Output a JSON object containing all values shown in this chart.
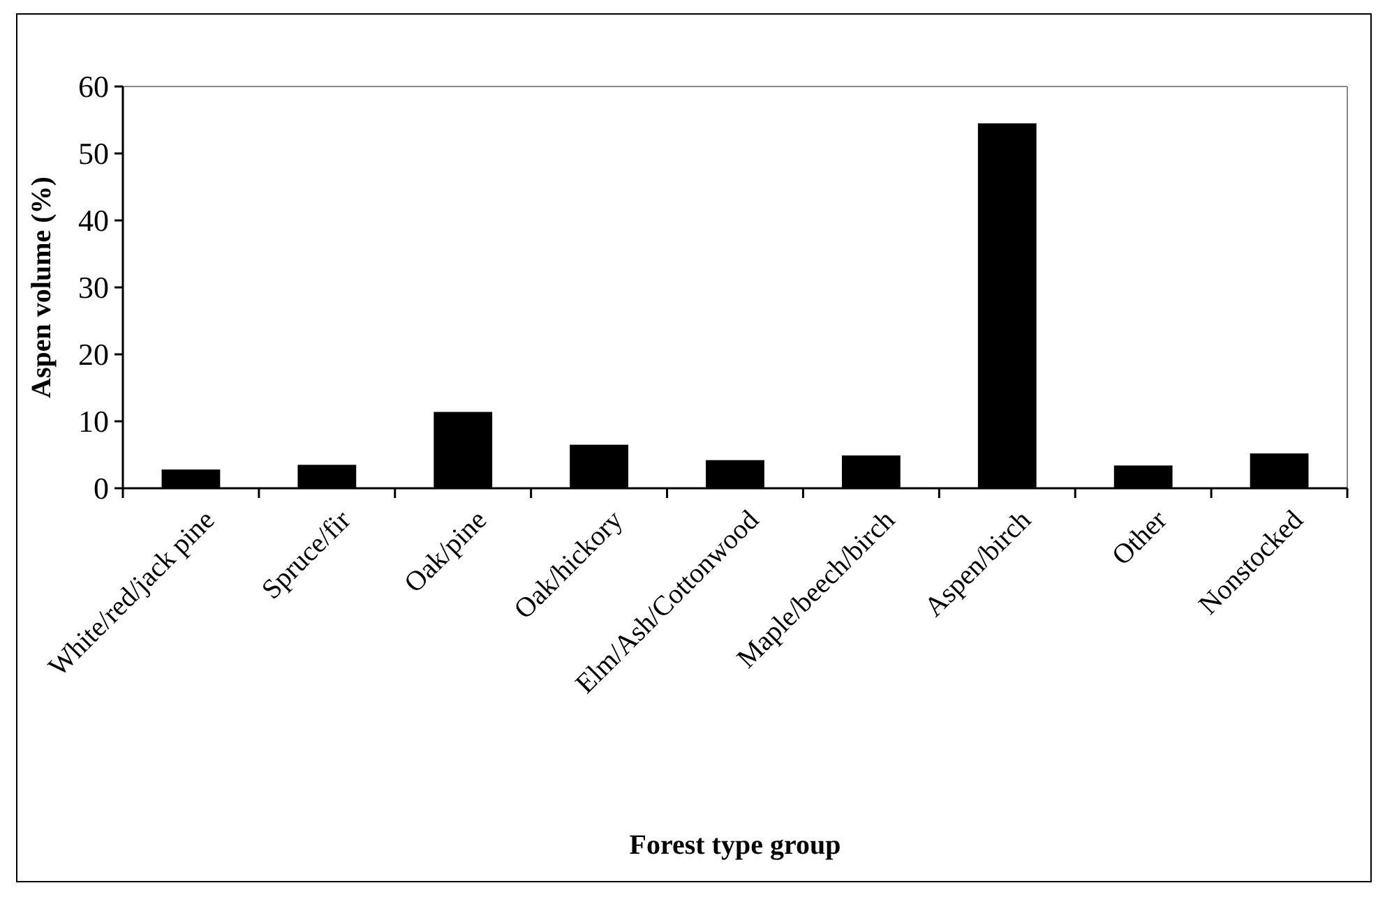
{
  "chart_data": {
    "type": "bar",
    "xlabel": "Forest type group",
    "ylabel": "Aspen volume (%)",
    "categories": [
      "White/red/jack pine",
      "Spruce/fir",
      "Oak/pine",
      "Oak/hickory",
      "Elm/Ash/Cottonwood",
      "Maple/beech/birch",
      "Aspen/birch",
      "Other",
      "Nonstocked"
    ],
    "values": [
      2.8,
      3.5,
      11.4,
      6.5,
      4.2,
      4.9,
      54.5,
      3.4,
      5.2
    ],
    "color": "#000000",
    "ylim": [
      0,
      60
    ],
    "yticks": [
      0,
      10,
      20,
      30,
      40,
      50,
      60
    ],
    "grid": false
  }
}
